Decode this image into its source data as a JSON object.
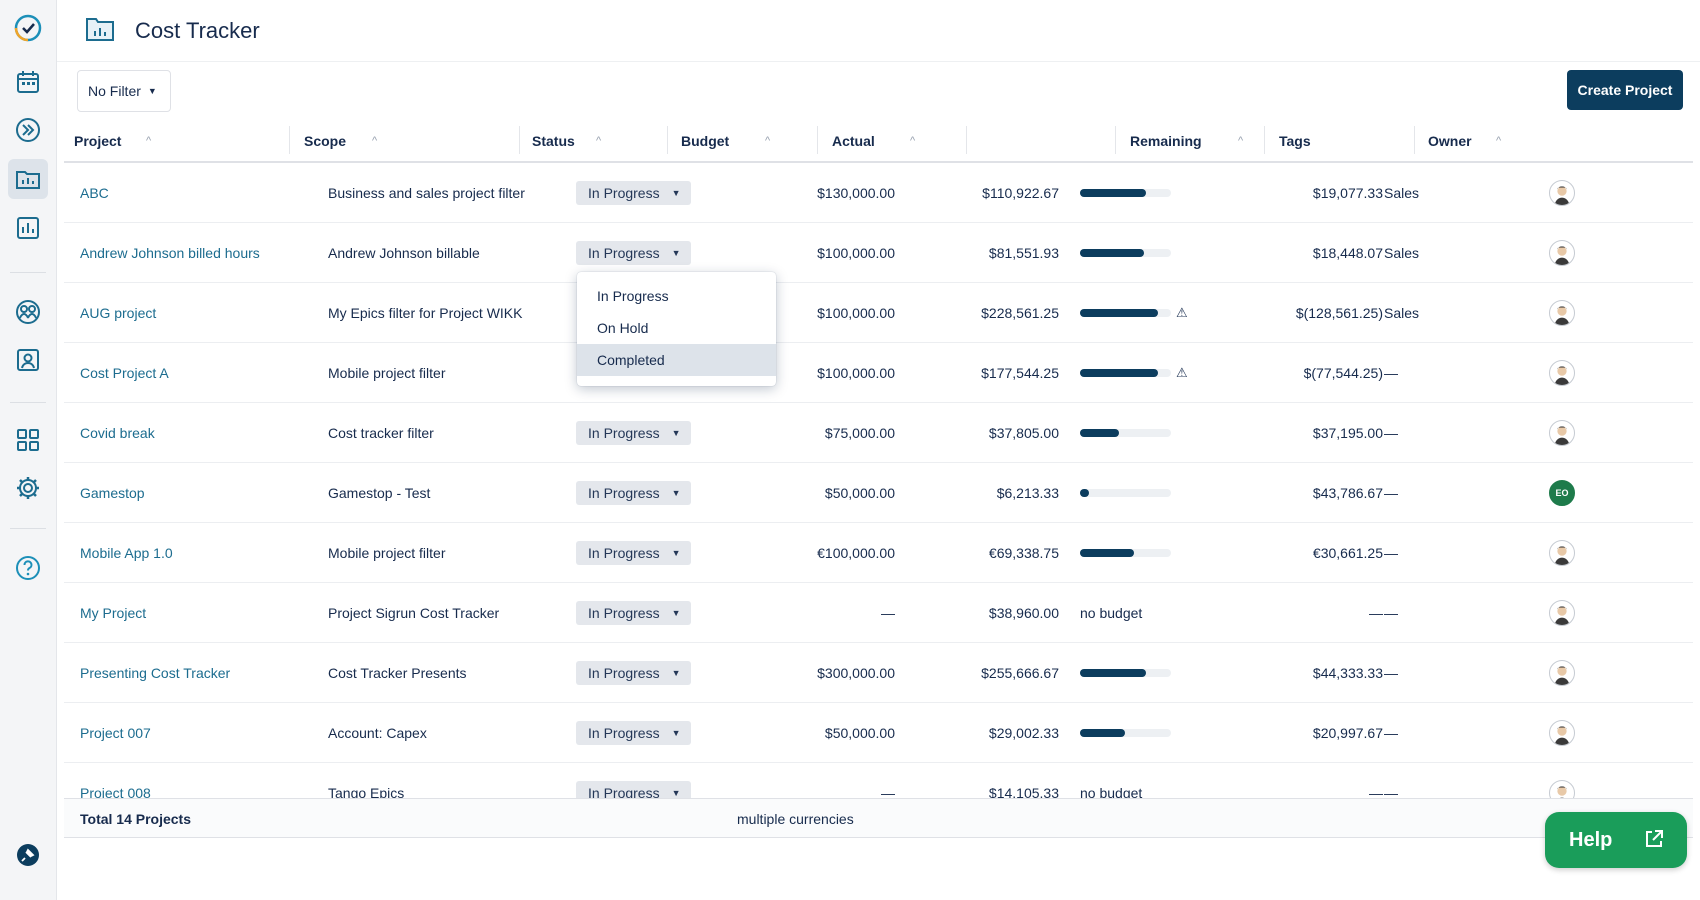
{
  "header": {
    "title": "Cost Tracker"
  },
  "toolbar": {
    "filter_label": "No Filter",
    "create_label": "Create Project"
  },
  "columns": {
    "project": "Project",
    "scope": "Scope",
    "status": "Status",
    "budget": "Budget",
    "actual": "Actual",
    "progress": "",
    "remaining": "Remaining",
    "tags": "Tags",
    "owner": "Owner"
  },
  "rows": [
    {
      "project": "ABC",
      "scope": "Business and sales project filter",
      "status": "In Progress",
      "budget": "$130,000.00",
      "actual": "$110,922.67",
      "progress": 0.85,
      "warning": false,
      "no_budget": false,
      "remaining": "$19,077.33",
      "tags": "Sales",
      "owner": "avatar"
    },
    {
      "project": "Andrew Johnson billed hours",
      "scope": "Andrew Johnson billable",
      "status": "In Progress",
      "budget": "$100,000.00",
      "actual": "$81,551.93",
      "progress": 0.82,
      "warning": false,
      "no_budget": false,
      "remaining": "$18,448.07",
      "tags": "Sales",
      "owner": "avatar"
    },
    {
      "project": "AUG project",
      "scope": "My Epics filter for Project WIKK",
      "status": "",
      "budget": "$100,000.00",
      "actual": "$228,561.25",
      "progress": 1.0,
      "warning": true,
      "no_budget": false,
      "remaining": "$(128,561.25)",
      "tags": "Sales",
      "owner": "avatar"
    },
    {
      "project": "Cost Project A",
      "scope": "Mobile project filter",
      "status": "",
      "budget": "$100,000.00",
      "actual": "$177,544.25",
      "progress": 1.0,
      "warning": true,
      "no_budget": false,
      "remaining": "$(77,544.25)",
      "tags": "—",
      "owner": "avatar"
    },
    {
      "project": "Covid break",
      "scope": "Cost tracker filter",
      "status": "In Progress",
      "budget": "$75,000.00",
      "actual": "$37,805.00",
      "progress": 0.5,
      "warning": false,
      "no_budget": false,
      "remaining": "$37,195.00",
      "tags": "—",
      "owner": "avatar"
    },
    {
      "project": "Gamestop",
      "scope": "Gamestop - Test",
      "status": "In Progress",
      "budget": "$50,000.00",
      "actual": "$6,213.33",
      "progress": 0.12,
      "warning": false,
      "no_budget": false,
      "remaining": "$43,786.67",
      "tags": "—",
      "owner": "EO"
    },
    {
      "project": "Mobile App 1.0",
      "scope": "Mobile project filter",
      "status": "In Progress",
      "budget": "€100,000.00",
      "actual": "€69,338.75",
      "progress": 0.69,
      "warning": false,
      "no_budget": false,
      "remaining": "€30,661.25",
      "tags": "—",
      "owner": "avatar"
    },
    {
      "project": "My Project",
      "scope": "Project Sigrun Cost Tracker",
      "status": "In Progress",
      "budget": "—",
      "actual": "$38,960.00",
      "progress": null,
      "warning": false,
      "no_budget": true,
      "no_budget_label": "no budget",
      "remaining": "—",
      "tags": "—",
      "owner": "avatar"
    },
    {
      "project": "Presenting Cost Tracker",
      "scope": "Cost Tracker Presents",
      "status": "In Progress",
      "budget": "$300,000.00",
      "actual": "$255,666.67",
      "progress": 0.85,
      "warning": false,
      "no_budget": false,
      "remaining": "$44,333.33",
      "tags": "—",
      "owner": "avatar"
    },
    {
      "project": "Project 007",
      "scope": "Account: Capex",
      "status": "In Progress",
      "budget": "$50,000.00",
      "actual": "$29,002.33",
      "progress": 0.58,
      "warning": false,
      "no_budget": false,
      "remaining": "$20,997.67",
      "tags": "—",
      "owner": "avatar"
    },
    {
      "project": "Project 008",
      "scope": "Tango Epics",
      "status": "In Progress",
      "budget": "—",
      "actual": "$14,105.33",
      "progress": null,
      "warning": false,
      "no_budget": true,
      "no_budget_label": "no budget",
      "remaining": "—",
      "tags": "—",
      "owner": "avatar"
    }
  ],
  "status_dropdown": {
    "options": [
      "In Progress",
      "On Hold",
      "Completed"
    ],
    "highlighted": "Completed"
  },
  "footer": {
    "total": "Total 14 Projects",
    "currencies": "multiple currencies"
  },
  "help": {
    "label": "Help"
  },
  "colors": {
    "accent": "#0c3d5e",
    "link": "#1c6c8f",
    "help_green": "#1a9d5a"
  }
}
